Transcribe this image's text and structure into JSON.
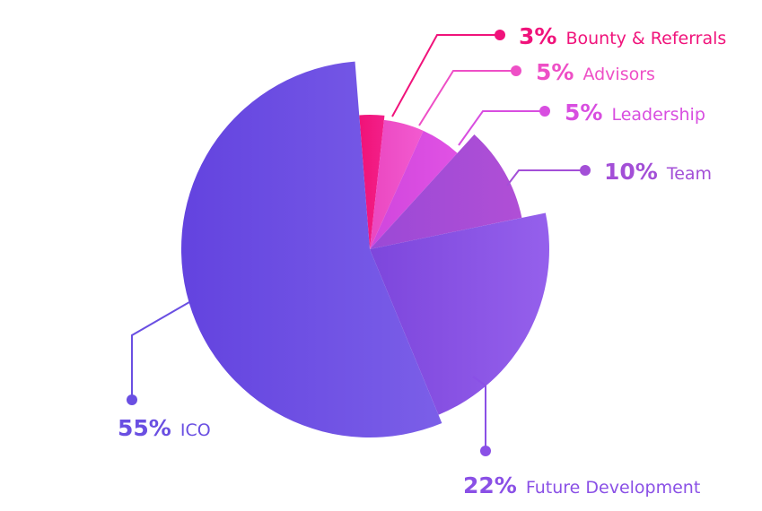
{
  "chart_data": {
    "type": "pie",
    "variant": "exploded, varying radius",
    "title": "",
    "slices": [
      {
        "pct": "3%",
        "name": "Bounty & Referrals",
        "value": 3,
        "color": "#f0137b"
      },
      {
        "pct": "5%",
        "name": "Advisors",
        "value": 5,
        "color": "#ee4fc6"
      },
      {
        "pct": "5%",
        "name": "Leadership",
        "value": 5,
        "color": "#d84ee0"
      },
      {
        "pct": "10%",
        "name": "Team",
        "value": 10,
        "color": "#a34fd7"
      },
      {
        "pct": "22%",
        "name": "Future Development",
        "value": 22,
        "color": "#8a50e6"
      },
      {
        "pct": "55%",
        "name": "ICO",
        "value": 55,
        "color": "#6a4fe2"
      }
    ]
  }
}
